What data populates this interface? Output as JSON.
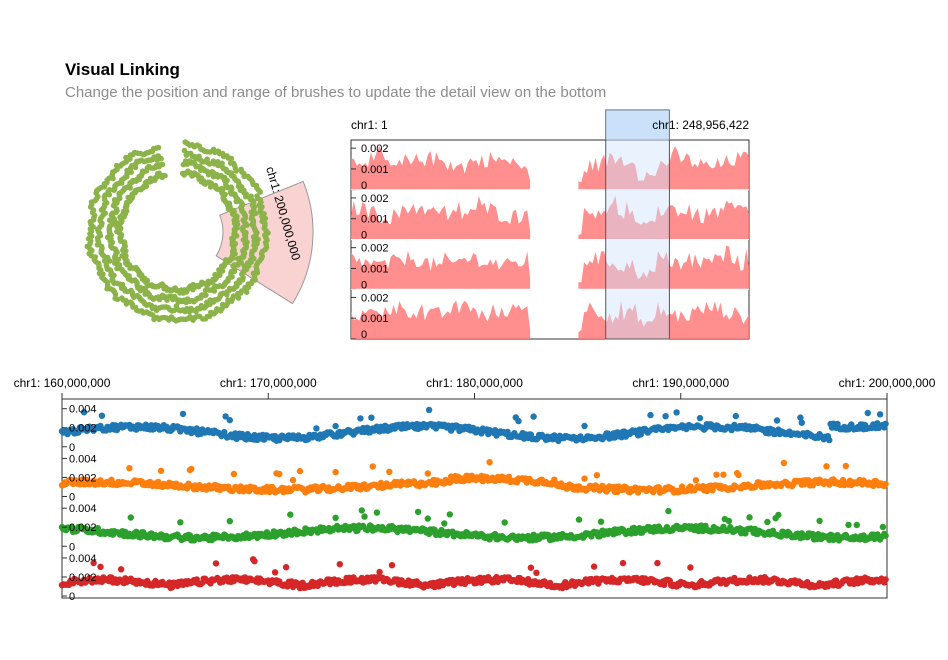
{
  "title": "Visual Linking",
  "subtitle": "Change the position and range of brushes to update the detail view on the bottom",
  "colors": {
    "circular_track": "#8bb34a",
    "area_fill": "#ff7a7a",
    "brush_fill": "#cfe3fb",
    "brush_stroke": "#555555",
    "circular_brush_fill": "#f7c3c3",
    "series": [
      "#1f77b4",
      "#ff7f0e",
      "#2ca02c",
      "#d62728"
    ]
  },
  "chart_data": [
    {
      "type": "scatter",
      "layout": "circular",
      "rings": 4,
      "brush_label": "chr1: 200,000,000"
    },
    {
      "type": "area",
      "tracks": 4,
      "axis_start_label": "chr1: 1",
      "axis_end_label": "chr1: 248,956,422",
      "y_ticks": [
        "0.002",
        "0.001",
        "0"
      ],
      "ylim": [
        0,
        0.0022
      ],
      "gap": [
        0.45,
        0.57
      ],
      "brush": [
        0.64,
        0.8
      ]
    },
    {
      "type": "scatter",
      "series_count": 4,
      "x_ticks": [
        "chr1: 160,000,000",
        "chr1: 170,000,000",
        "chr1: 180,000,000",
        "chr1: 190,000,000",
        "chr1: 200,000,000"
      ],
      "x_tick_values": [
        160000000,
        170000000,
        180000000,
        190000000,
        200000000
      ],
      "xlim": [
        160000000,
        200000000
      ],
      "y_ticks": [
        "0.004",
        "0.002",
        "0"
      ],
      "ylim": [
        0,
        0.0046
      ]
    }
  ]
}
